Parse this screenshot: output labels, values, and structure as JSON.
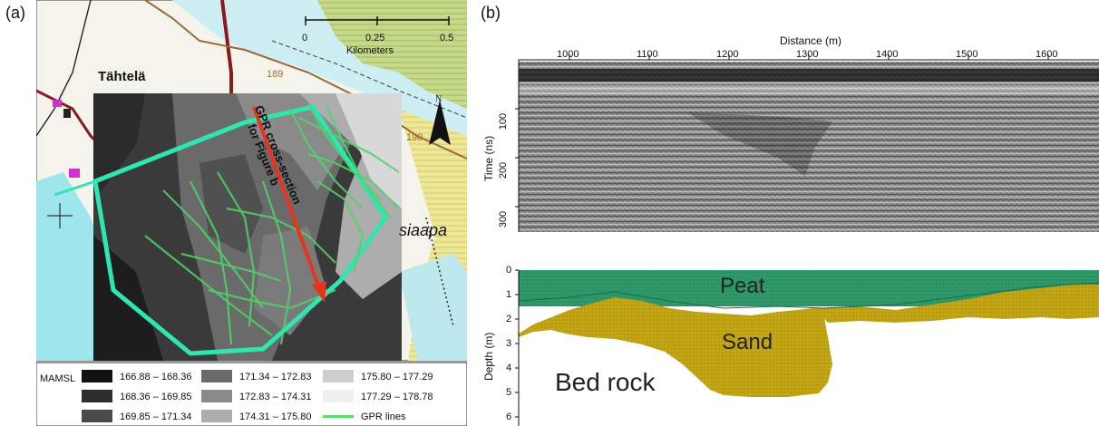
{
  "panel_a": {
    "label": "(a)",
    "scale_bar": {
      "ticks": [
        "0",
        "0.25",
        "0.5"
      ],
      "unit": "Kilometers"
    },
    "place_name": "Tähtelä",
    "north_symbol": "N",
    "gpr_label_line1": "GPR cross-section",
    "gpr_label_line2": "for Figure b",
    "region_label": "siaapa",
    "road_numbers": [
      "189",
      "190"
    ],
    "legend": {
      "title": "MAMSL",
      "classes": [
        {
          "range": "166.88 – 168.36",
          "color": "#111111"
        },
        {
          "range": "168.36 – 169.85",
          "color": "#2e2e2e"
        },
        {
          "range": "169.85 – 171.34",
          "color": "#4a4a4a"
        },
        {
          "range": "171.34 – 172.83",
          "color": "#6a6a6a"
        },
        {
          "range": "172.83 – 174.31",
          "color": "#8a8a8a"
        },
        {
          "range": "174.31 – 175.80",
          "color": "#adadad"
        },
        {
          "range": "175.80 – 177.29",
          "color": "#cfcfcf"
        },
        {
          "range": "177.29 – 178.78",
          "color": "#f0f0f0"
        }
      ],
      "gpr_lines_label": "GPR lines",
      "gpr_lines_color": "#5fdc6e"
    },
    "colors": {
      "water": "#9fe6ec",
      "survey_boundary": "#2ee6b0",
      "gpr_lines": "#4fd46a",
      "cross_section_arrow": "#e8341c",
      "road": "#8b1a1a",
      "green_area": "#a9cc6a",
      "yellow_area": "#e8e38a"
    }
  },
  "panel_b": {
    "label": "(b)",
    "gpr": {
      "x_label": "Distance (m)",
      "x_ticks": [
        "1000",
        "1100",
        "1200",
        "1300",
        "1400",
        "1500",
        "1600"
      ],
      "y_label": "Time (ns)",
      "y_ticks": [
        "100",
        "200",
        "300"
      ]
    },
    "profile": {
      "y_label": "Depth (m)",
      "y_ticks": [
        "0",
        "1",
        "2",
        "3",
        "4",
        "5",
        "6"
      ],
      "layer_labels": {
        "peat": "Peat",
        "sand": "Sand",
        "bedrock": "Bed rock"
      },
      "colors": {
        "peat": "#2e9a6a",
        "sand": "#c4a615",
        "bedrock": "#ffffff"
      }
    }
  }
}
